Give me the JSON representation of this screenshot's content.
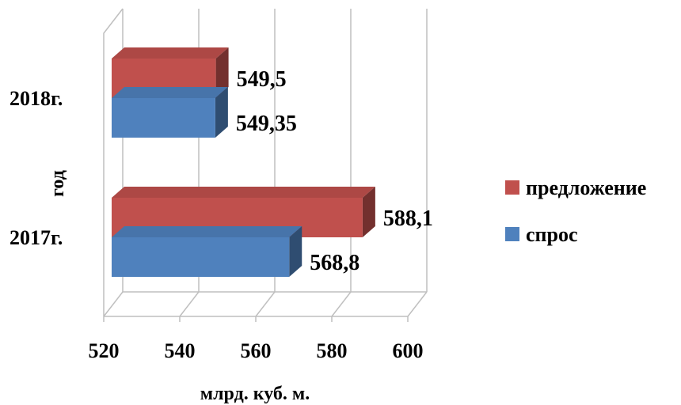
{
  "chart_data": {
    "type": "bar",
    "orientation": "horizontal",
    "three_d": true,
    "categories": [
      "2017г.",
      "2018г."
    ],
    "series": [
      {
        "name": "спрос",
        "values": [
          568.8,
          549.35
        ],
        "labels": [
          "568,8",
          "549,35"
        ],
        "color": "#4F81BD"
      },
      {
        "name": "предложение",
        "values": [
          588.1,
          549.5
        ],
        "labels": [
          "588,1",
          "549,5"
        ],
        "color": "#C0504D"
      }
    ],
    "xlabel": "млрд. куб. м.",
    "ylabel": "год",
    "xlim": [
      520,
      600
    ],
    "xticks": [
      520,
      540,
      560,
      580,
      600
    ],
    "grid": true,
    "legend": {
      "position": "right",
      "order": [
        "предложение",
        "спрос"
      ]
    }
  }
}
